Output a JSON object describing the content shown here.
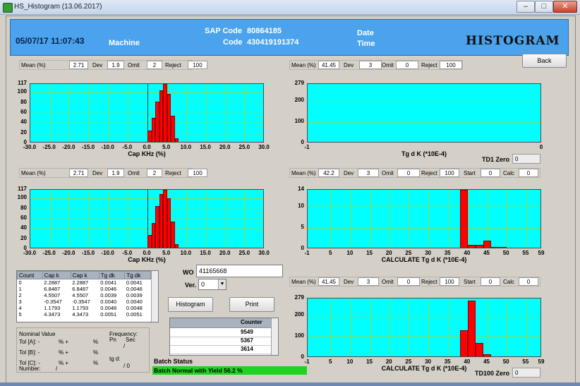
{
  "window": {
    "title": "HS_Histogram (13.06.2017)"
  },
  "header": {
    "datetime": "05/07/17 11:07:43",
    "machine_label": "Machine",
    "sap_label": "SAP Code",
    "sap_value": "80864185",
    "code_label": "Code",
    "code_value": "430419191374",
    "date_label": "Date",
    "time_label": "Time",
    "title": "HISTOGRAM"
  },
  "back_label": "Back",
  "stat_labels": {
    "mean": "Mean (%)",
    "dev": "Dev",
    "omit": "Omit",
    "reject": "Reject",
    "start": "Start",
    "calc": "Calc"
  },
  "stats": {
    "p1": {
      "mean": "2.71",
      "dev": "1.9",
      "omit": "2",
      "reject": "100"
    },
    "p2": {
      "mean": "41.45",
      "dev": "3",
      "omit": "0",
      "reject": "100"
    },
    "p3": {
      "mean": "2.71",
      "dev": "1.9",
      "omit": "2",
      "reject": "100"
    },
    "p4": {
      "mean": "42.2",
      "dev": "3",
      "omit": "0",
      "reject": "100",
      "start": "0",
      "calc": "0"
    },
    "p6": {
      "mean": "41.45",
      "dev": "3",
      "omit": "0",
      "reject": "100",
      "start": "0",
      "calc": "0"
    }
  },
  "td1_zero": {
    "label": "TD1 Zero",
    "value": "0"
  },
  "td100_zero": {
    "label": "TD100 Zero",
    "value": "0"
  },
  "wo": {
    "label": "WO",
    "value": "41165668"
  },
  "ver": {
    "label": "Ver.",
    "value": "0"
  },
  "buttons": {
    "histogram": "Histogram",
    "print": "Print"
  },
  "count_table": {
    "headers": [
      "Count",
      "Cap k",
      "Cap k",
      "Tg dk",
      "Tg dk"
    ],
    "rows": [
      [
        "0",
        "2.2887",
        "2.2887",
        "0.0041",
        "0.0041"
      ],
      [
        "1",
        "6.8487",
        "6.8487",
        "0.0046",
        "0.0046"
      ],
      [
        "2",
        "4.5507",
        "4.5507",
        "0.0039",
        "0.0039"
      ],
      [
        "3",
        "-0.3547",
        "-0.3547",
        "0.0040",
        "0.0040"
      ],
      [
        "4",
        "1.1793",
        "1.1793",
        "0.0048",
        "0.0048"
      ],
      [
        "5",
        "4.3473",
        "4.3473",
        "0.0051",
        "0.0051"
      ]
    ]
  },
  "counter": {
    "header": "Counter",
    "values": [
      "9549",
      "5367",
      "3614"
    ]
  },
  "nominal": {
    "title": "Nominal Value",
    "frequency_label": "Frequency:",
    "pn_label": "Pn",
    "sec_label": "Sec",
    "slash1": "/",
    "tol_a": "Tol [A]:  -",
    "tol_b": "Tol [B]:  -",
    "tol_c": "Tol [C]:  -",
    "pct_plus": "%  +",
    "pct": "%",
    "tgd_label": "tg d:",
    "number_label": "Number:",
    "number_slash": "/",
    "zero_ratio": "/  0"
  },
  "batch": {
    "label": "Batch Status",
    "message": "Batch Normal with Yield 56.2 %"
  },
  "colors": {
    "plot_bg": "#00ffff",
    "bar": "#ff0000",
    "header_bg": "#4aa3ec",
    "status_bar": "#21d321",
    "grid": "#c8c800"
  },
  "chart_data": [
    {
      "type": "bar",
      "xlabel": "Cap KHz (%)",
      "xlim": [
        -30,
        30
      ],
      "ylim": [
        0,
        117
      ],
      "xticks": [
        "-30.0",
        "-25.0",
        "-20.0",
        "-15.0",
        "-10.0",
        "-5.0",
        "0.0",
        "5.0",
        "10.0",
        "15.0",
        "20.0",
        "25.0",
        "30.0"
      ],
      "yticks": [
        "0",
        "20",
        "40",
        "60",
        "80",
        "100",
        "117"
      ],
      "bin_width": 1,
      "bins_start": [
        -1,
        0,
        1,
        2,
        3,
        4,
        5,
        6,
        7,
        8
      ],
      "values": [
        2,
        25,
        50,
        82,
        105,
        117,
        98,
        55,
        10,
        2
      ]
    },
    {
      "type": "bar",
      "xlabel": "Tg d  K (*10E-4)",
      "xlim": [
        -1,
        0
      ],
      "ylim": [
        0,
        279
      ],
      "xticks": [
        "-1",
        "0"
      ],
      "yticks": [
        "0",
        "100",
        "200",
        "279"
      ],
      "bins_start": [],
      "values": []
    },
    {
      "type": "bar",
      "xlabel": "Cap KHz (%)",
      "xlim": [
        -30,
        30
      ],
      "ylim": [
        0,
        117
      ],
      "xticks": [
        "-30.0",
        "-25.0",
        "-20.0",
        "-15.0",
        "-10.0",
        "-5.0",
        "0.0",
        "5.0",
        "10.0",
        "15.0",
        "20.0",
        "25.0",
        "30.0"
      ],
      "yticks": [
        "0",
        "20",
        "40",
        "60",
        "80",
        "100",
        "117"
      ],
      "bin_width": 1,
      "bins_start": [
        -1,
        0,
        1,
        2,
        3,
        4,
        5,
        6,
        7,
        8
      ],
      "values": [
        2,
        28,
        52,
        85,
        108,
        117,
        100,
        55,
        10,
        2
      ]
    },
    {
      "type": "bar",
      "xlabel": "CALCULATE Tg d  K (*10E-4)",
      "xlim": [
        -1,
        59
      ],
      "ylim": [
        0,
        14
      ],
      "xticks": [
        "-1",
        "5",
        "10",
        "15",
        "20",
        "25",
        "30",
        "35",
        "40",
        "45",
        "50",
        "55",
        "59"
      ],
      "yticks": [
        "0",
        "5",
        "10",
        "14"
      ],
      "bin_width": 2,
      "bins_start": [
        38,
        40,
        42,
        44,
        46,
        48
      ],
      "values": [
        14,
        1,
        1,
        2,
        0.5,
        0.5
      ]
    },
    {
      "type": "bar",
      "xlabel": "CALCULATE Tg d  K (*10E-4)",
      "xlim": [
        -1,
        59
      ],
      "ylim": [
        0,
        279
      ],
      "xticks": [
        "-1",
        "5",
        "10",
        "15",
        "20",
        "25",
        "30",
        "35",
        "40",
        "45",
        "50",
        "55",
        "59"
      ],
      "yticks": [
        "0",
        "100",
        "200",
        "279"
      ],
      "bin_width": 2,
      "bins_start": [
        38,
        40,
        42,
        44,
        46
      ],
      "values": [
        130,
        270,
        70,
        15,
        2
      ]
    }
  ]
}
